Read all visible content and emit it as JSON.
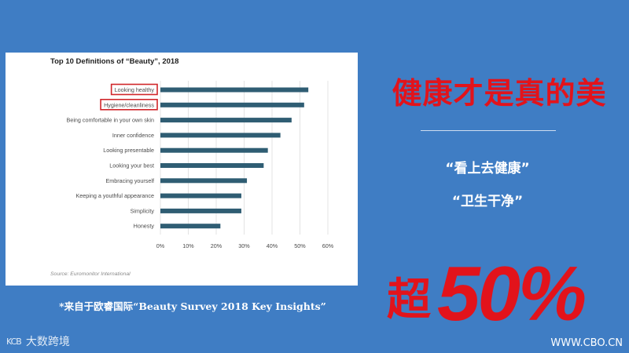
{
  "chart_data": {
    "type": "bar",
    "orientation": "horizontal",
    "title": "Top 10 Definitions of “Beauty”, 2018",
    "categories": [
      "Looking healthy",
      "Hygiene/cleanliness",
      "Being comfortable in your own skin",
      "Inner confidence",
      "Looking presentable",
      "Looking your best",
      "Embracing yourself",
      "Keeping a youthful appearance",
      "Simplicity",
      "Honesty"
    ],
    "values": [
      53,
      51.5,
      47,
      43,
      38.5,
      37,
      31,
      29,
      29,
      21.5
    ],
    "highlighted": [
      "Looking healthy",
      "Hygiene/cleanliness"
    ],
    "xlim": [
      0,
      60
    ],
    "xticks": [
      "0%",
      "10%",
      "20%",
      "30%",
      "40%",
      "50%",
      "60%"
    ],
    "grid": true,
    "bar_color": "#2f5d73",
    "highlight_color": "#d0262a",
    "source": "Source: Euromonitor International"
  },
  "headline": "健康才是真的美",
  "quotes": [
    "“看上去健康”",
    "“卫生干净”"
  ],
  "big_stat": {
    "prefix": "超",
    "value": "50%"
  },
  "footnote": "*来自于欧睿国际“Beauty Survey 2018 Key Insights”",
  "watermark": {
    "logo": "KCB",
    "text": "大数跨境"
  },
  "site": "WWW.CBO.CN"
}
